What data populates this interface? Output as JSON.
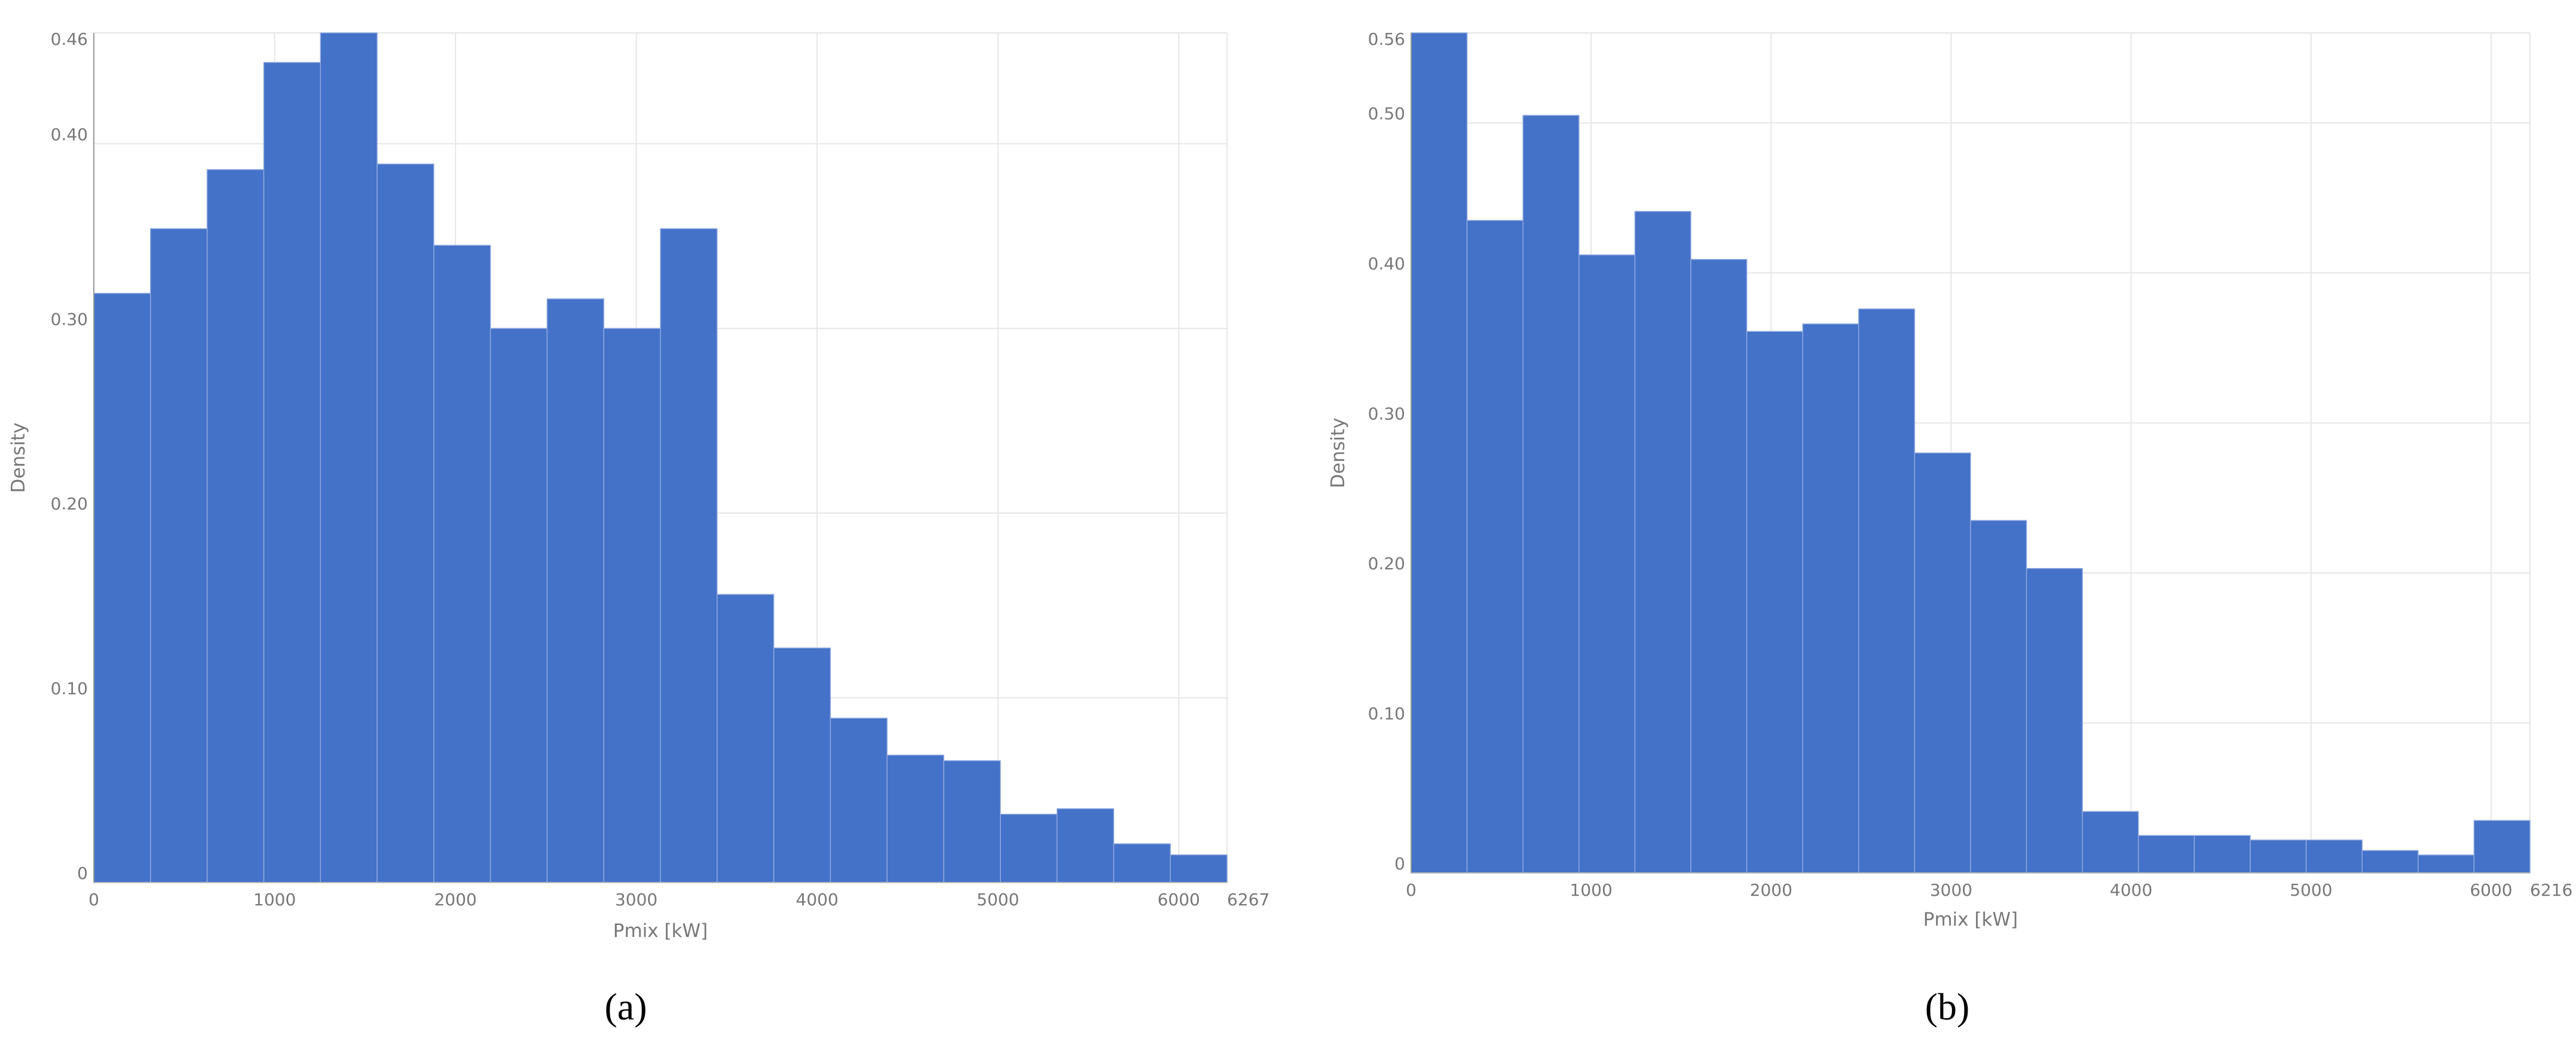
{
  "chart_data": [
    {
      "type": "histogram",
      "caption": "(a)",
      "xlabel": "Pmix [kW]",
      "ylabel": "Density",
      "color": "#4472c9",
      "grid": true,
      "bins": [
        0,
        313.35,
        626.7,
        940.05,
        1253.4,
        1566.75,
        1880.1,
        2193.45,
        2506.8,
        2820.15,
        3133.5,
        3446.85,
        3760.2,
        4073.55,
        4386.9,
        4700.25,
        5013.6,
        5326.95,
        5640.3,
        5953.65,
        6267
      ],
      "values": [
        0.319,
        0.354,
        0.386,
        0.444,
        0.46,
        0.389,
        0.345,
        0.3,
        0.316,
        0.3,
        0.354,
        0.156,
        0.127,
        0.089,
        0.069,
        0.066,
        0.037,
        0.04,
        0.021,
        0.015
      ],
      "xlim": [
        0,
        6267
      ],
      "xticks": [
        0,
        1000,
        2000,
        3000,
        4000,
        5000,
        6000,
        6267
      ],
      "ylim": [
        0,
        0.46
      ],
      "yticks": [
        0,
        {
          "value": 0.1,
          "label": "0.10"
        },
        {
          "value": 0.2,
          "label": "0.20"
        },
        {
          "value": 0.3,
          "label": "0.30"
        },
        {
          "value": 0.4,
          "label": "0.40"
        },
        0.46
      ]
    },
    {
      "type": "histogram",
      "caption": "(b)",
      "xlabel": "Pmix [kW]",
      "ylabel": "Density",
      "color": "#4472c9",
      "grid": true,
      "bins": [
        0,
        310.8,
        621.6,
        932.4,
        1243.2,
        1554,
        1864.8,
        2175.6,
        2486.4,
        2797.2,
        3108,
        3418.8,
        3729.6,
        4040.4,
        4351.2,
        4662,
        4972.8,
        5283.6,
        5594.4,
        5905.2,
        6216
      ],
      "values": [
        0.56,
        0.435,
        0.505,
        0.412,
        0.441,
        0.409,
        0.361,
        0.366,
        0.376,
        0.28,
        0.235,
        0.203,
        0.041,
        0.025,
        0.025,
        0.022,
        0.022,
        0.015,
        0.012,
        0.035
      ],
      "xlim": [
        0,
        6216
      ],
      "xticks": [
        0,
        1000,
        2000,
        3000,
        4000,
        5000,
        6000,
        6216
      ],
      "ylim": [
        0,
        0.56
      ],
      "yticks": [
        0,
        {
          "value": 0.1,
          "label": "0.10"
        },
        {
          "value": 0.2,
          "label": "0.20"
        },
        {
          "value": 0.3,
          "label": "0.30"
        },
        {
          "value": 0.4,
          "label": "0.40"
        },
        {
          "value": 0.5,
          "label": "0.50"
        },
        0.56
      ]
    }
  ]
}
